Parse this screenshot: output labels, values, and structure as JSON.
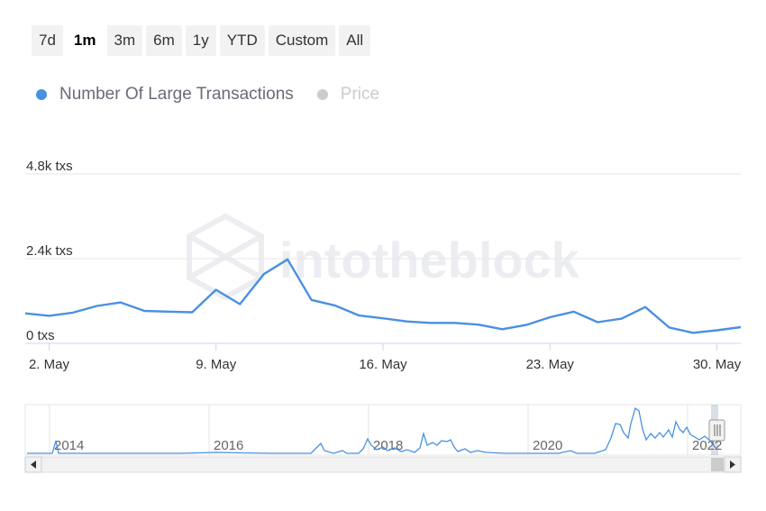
{
  "range_selector": {
    "buttons": [
      "7d",
      "1m",
      "3m",
      "6m",
      "1y",
      "YTD",
      "Custom",
      "All"
    ],
    "active": "1m"
  },
  "legend": [
    {
      "label": "Number Of Large Transactions",
      "color": "#4a90e2",
      "visible": true
    },
    {
      "label": "Price",
      "color": "#cccccc",
      "visible": false
    }
  ],
  "watermark": "intotheblock",
  "chart_data": {
    "type": "line",
    "title": "",
    "xlabel": "",
    "ylabel": "",
    "y_ticks": [
      "0 txs",
      "2.4k txs",
      "4.8k txs"
    ],
    "ylim": [
      0,
      4800
    ],
    "x_ticks": [
      "2. May",
      "9. May",
      "16. May",
      "23. May",
      "30. May"
    ],
    "grid": true,
    "legend_position": "top-left",
    "series": [
      {
        "name": "Number Of Large Transactions",
        "color": "#4a90e2",
        "x": [
          "May 1",
          "May 2",
          "May 3",
          "May 4",
          "May 5",
          "May 6",
          "May 7",
          "May 8",
          "May 9",
          "May 10",
          "May 11",
          "May 12",
          "May 13",
          "May 14",
          "May 15",
          "May 16",
          "May 17",
          "May 18",
          "May 19",
          "May 20",
          "May 21",
          "May 22",
          "May 23",
          "May 24",
          "May 25",
          "May 26",
          "May 27",
          "May 28",
          "May 29",
          "May 30",
          "May 31"
        ],
        "values": [
          850,
          780,
          870,
          1060,
          1160,
          920,
          900,
          880,
          1520,
          1110,
          1960,
          2380,
          1230,
          1070,
          790,
          710,
          620,
          580,
          580,
          530,
          400,
          520,
          740,
          900,
          600,
          700,
          1030,
          450,
          300,
          370,
          460
        ]
      }
    ],
    "navigator": {
      "x_ticks": [
        "2014",
        "2016",
        "2018",
        "2020",
        "2022"
      ]
    }
  }
}
